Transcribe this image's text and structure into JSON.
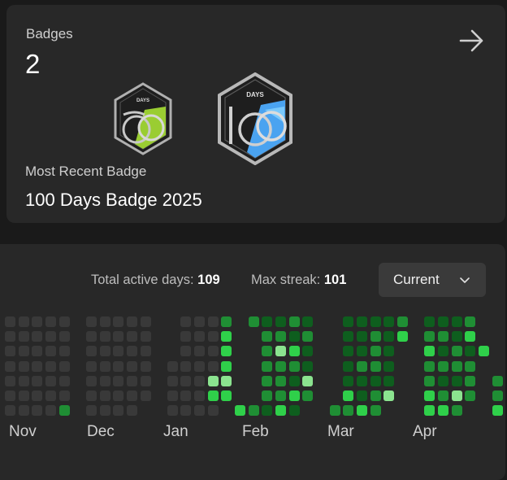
{
  "badges_card": {
    "title": "Badges",
    "count": "2",
    "arrow_icon": "arrow-right-icon",
    "badge_icons": [
      {
        "name": "50-days-badge-icon",
        "text": "DAYS",
        "color": "#9acd32"
      },
      {
        "name": "100-days-badge-icon",
        "text": "DAYS",
        "color": "#4aa3f0"
      }
    ],
    "recent_label": "Most Recent Badge",
    "recent_name": "100 Days Badge 2025"
  },
  "stats": {
    "active_label": "Total active days:",
    "active_value": "109",
    "streak_label": "Max streak:",
    "streak_value": "101"
  },
  "dropdown": {
    "selected": "Current",
    "icon": "chevron-down-icon"
  },
  "months": [
    "Nov",
    "Dec",
    "Jan",
    "Feb",
    "Mar",
    "Apr"
  ],
  "colors": {
    "empty": "#393939",
    "level1": "#0e5e1e",
    "level2": "#1f8e34",
    "level3": "#2fd04a",
    "level4": "#8be38f"
  },
  "heatmap": {
    "rows": 7,
    "weeks": [
      [
        0,
        0,
        0,
        0,
        0,
        0,
        0
      ],
      [
        0,
        0,
        0,
        0,
        0,
        0,
        0
      ],
      [
        0,
        0,
        0,
        0,
        0,
        0,
        0
      ],
      [
        0,
        0,
        0,
        0,
        0,
        0,
        0
      ],
      [
        0,
        0,
        0,
        0,
        0,
        0,
        2
      ],
      [
        null,
        null,
        null,
        null,
        null,
        null,
        null
      ],
      [
        0,
        0,
        0,
        0,
        0,
        0,
        0
      ],
      [
        0,
        0,
        0,
        0,
        0,
        0,
        0
      ],
      [
        0,
        0,
        0,
        0,
        0,
        0,
        0
      ],
      [
        0,
        0,
        0,
        0,
        0,
        0,
        0
      ],
      [
        0,
        0,
        0,
        0,
        0,
        0,
        null
      ],
      [
        null,
        null,
        null,
        null,
        null,
        null,
        null
      ],
      [
        null,
        null,
        null,
        0,
        0,
        0,
        0
      ],
      [
        0,
        0,
        0,
        0,
        0,
        0,
        0
      ],
      [
        0,
        0,
        0,
        0,
        0,
        0,
        0
      ],
      [
        0,
        0,
        0,
        0,
        4,
        3,
        0
      ],
      [
        2,
        3,
        3,
        3,
        4,
        3,
        null
      ],
      [
        null,
        null,
        null,
        null,
        null,
        null,
        3
      ],
      [
        2,
        null,
        null,
        null,
        null,
        null,
        2
      ],
      [
        1,
        2,
        2,
        2,
        2,
        2,
        1
      ],
      [
        1,
        2,
        4,
        2,
        2,
        2,
        3
      ],
      [
        2,
        1,
        3,
        2,
        1,
        3,
        1
      ],
      [
        1,
        2,
        1,
        1,
        4,
        2,
        null
      ],
      [
        null,
        null,
        null,
        null,
        null,
        null,
        null
      ],
      [
        null,
        null,
        null,
        null,
        null,
        null,
        2
      ],
      [
        1,
        1,
        1,
        1,
        1,
        3,
        2
      ],
      [
        1,
        1,
        1,
        2,
        1,
        1,
        3
      ],
      [
        1,
        2,
        2,
        2,
        1,
        2,
        2
      ],
      [
        1,
        1,
        1,
        1,
        1,
        4,
        null
      ],
      [
        2,
        3,
        null,
        null,
        null,
        null,
        null
      ],
      [
        null,
        null,
        null,
        null,
        null,
        null,
        null
      ],
      [
        1,
        2,
        3,
        2,
        2,
        3,
        3
      ],
      [
        1,
        2,
        1,
        2,
        1,
        2,
        3
      ],
      [
        1,
        1,
        2,
        2,
        1,
        4,
        2
      ],
      [
        2,
        3,
        1,
        2,
        2,
        2,
        null
      ],
      [
        null,
        null,
        3,
        null,
        null,
        null,
        null
      ],
      [
        null,
        null,
        null,
        null,
        2,
        2,
        3
      ]
    ]
  }
}
